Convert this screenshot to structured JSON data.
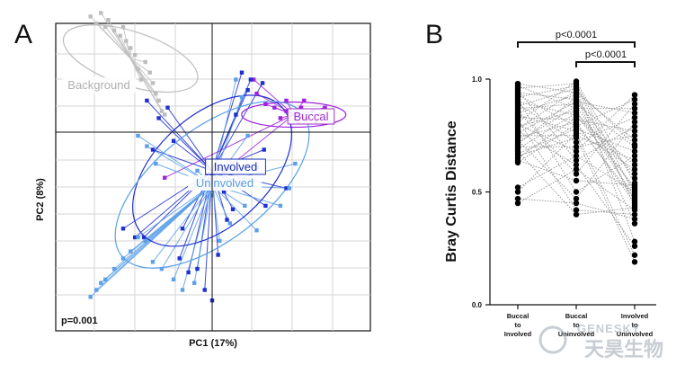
{
  "panel_a": {
    "letter": "A",
    "xlabel": "PC1 (17%)",
    "ylabel": "PC2 (8%)",
    "pvalue": "p=0.001",
    "groups": [
      {
        "name": "Background",
        "color": "#bdbdbd",
        "label_color": "#b0b0b0"
      },
      {
        "name": "Buccal",
        "color": "#a020e0",
        "label_color": "#9b30c8"
      },
      {
        "name": "Involved",
        "color": "#1f2fd0",
        "label_color": "#1a2fb8"
      },
      {
        "name": "Uninvolved",
        "color": "#5ba0e8",
        "label_color": "#5a9fe0"
      }
    ]
  },
  "panel_b": {
    "letter": "B",
    "brackets": [
      {
        "text": "p<0.0001"
      },
      {
        "text": "p<0.0001"
      }
    ]
  },
  "chart_data": [
    {
      "type": "scatter",
      "title": "",
      "xlabel": "PC1 (17%)",
      "ylabel": "PC2 (8%)",
      "annotation": "p=0.001",
      "grid": true,
      "series": [
        {
          "name": "Background",
          "centroid": [
            -0.55,
            0.42
          ],
          "points": [
            [
              -0.82,
              0.66
            ],
            [
              -0.78,
              0.62
            ],
            [
              -0.75,
              0.68
            ],
            [
              -0.72,
              0.6
            ],
            [
              -0.7,
              0.64
            ],
            [
              -0.66,
              0.58
            ],
            [
              -0.62,
              0.55
            ],
            [
              -0.6,
              0.6
            ],
            [
              -0.58,
              0.52
            ],
            [
              -0.55,
              0.48
            ],
            [
              -0.52,
              0.44
            ],
            [
              -0.5,
              0.36
            ],
            [
              -0.48,
              0.3
            ],
            [
              -0.45,
              0.4
            ],
            [
              -0.42,
              0.34
            ],
            [
              -0.4,
              0.28
            ],
            [
              -0.38,
              0.22
            ],
            [
              -0.36,
              0.18
            ],
            [
              -0.34,
              0.12
            ],
            [
              -0.32,
              0.1
            ]
          ]
        },
        {
          "name": "Buccal",
          "centroid": [
            0.55,
            0.1
          ],
          "points": [
            [
              0.28,
              0.3
            ],
            [
              0.3,
              0.22
            ],
            [
              0.36,
              0.16
            ],
            [
              0.42,
              0.14
            ],
            [
              0.46,
              0.08
            ],
            [
              0.5,
              0.12
            ],
            [
              0.55,
              0.1
            ],
            [
              0.6,
              0.14
            ],
            [
              0.64,
              0.08
            ],
            [
              0.68,
              0.12
            ],
            [
              0.72,
              0.1
            ],
            [
              0.76,
              0.14
            ],
            [
              0.5,
              0.18
            ],
            [
              0.58,
              0.06
            ],
            [
              0.62,
              0.18
            ],
            [
              0.7,
              0.06
            ],
            [
              0.08,
              -0.22
            ],
            [
              -0.32,
              -0.26
            ]
          ]
        },
        {
          "name": "Involved",
          "centroid": [
            0.0,
            -0.22
          ],
          "points": [
            [
              -0.44,
              0.18
            ],
            [
              -0.36,
              0.08
            ],
            [
              -0.3,
              0.14
            ],
            [
              -0.26,
              -0.05
            ],
            [
              -0.4,
              -0.1
            ],
            [
              -0.2,
              -0.55
            ],
            [
              -0.22,
              -0.72
            ],
            [
              -0.16,
              -0.8
            ],
            [
              -0.1,
              -0.78
            ],
            [
              -0.05,
              -0.9
            ],
            [
              0.0,
              -0.96
            ],
            [
              0.04,
              -0.7
            ],
            [
              0.1,
              -0.5
            ],
            [
              0.14,
              -0.44
            ],
            [
              0.2,
              -0.3
            ],
            [
              0.3,
              -0.2
            ],
            [
              0.35,
              -0.1
            ],
            [
              0.16,
              0.1
            ],
            [
              0.2,
              0.34
            ],
            [
              0.24,
              0.24
            ],
            [
              0.26,
              0.3
            ],
            [
              0.34,
              0.28
            ],
            [
              -0.52,
              -0.6
            ],
            [
              -0.6,
              -0.55
            ],
            [
              -0.46,
              -0.6
            ],
            [
              0.08,
              -0.34
            ],
            [
              0.12,
              -0.2
            ],
            [
              0.36,
              -0.42
            ],
            [
              0.5,
              -0.32
            ]
          ]
        },
        {
          "name": "Uninvolved",
          "centroid": [
            0.0,
            -0.3
          ],
          "points": [
            [
              -0.82,
              -0.94
            ],
            [
              -0.78,
              -0.9
            ],
            [
              -0.75,
              -0.86
            ],
            [
              -0.72,
              -0.84
            ],
            [
              -0.66,
              -0.78
            ],
            [
              -0.6,
              -0.72
            ],
            [
              -0.55,
              -0.68
            ],
            [
              -0.5,
              -0.6
            ],
            [
              -0.45,
              -0.62
            ],
            [
              -0.4,
              -0.74
            ],
            [
              -0.34,
              -0.78
            ],
            [
              -0.26,
              -0.84
            ],
            [
              -0.2,
              -0.9
            ],
            [
              -0.12,
              -0.86
            ],
            [
              0.05,
              -0.62
            ],
            [
              0.12,
              -0.52
            ],
            [
              0.22,
              -0.42
            ],
            [
              0.3,
              -0.56
            ],
            [
              0.46,
              -0.42
            ],
            [
              0.52,
              -0.32
            ],
            [
              0.56,
              -0.18
            ],
            [
              0.24,
              -0.02
            ],
            [
              0.2,
              0.2
            ],
            [
              0.16,
              0.3
            ],
            [
              -0.5,
              -0.02
            ],
            [
              -0.44,
              -0.08
            ],
            [
              -0.38,
              -0.18
            ],
            [
              -0.1,
              -0.22
            ],
            [
              0.0,
              -0.36
            ]
          ]
        }
      ]
    },
    {
      "type": "scatter",
      "title": "",
      "xlabel": "",
      "ylabel": "Bray Curtis Distance",
      "ylim": [
        0.0,
        1.0
      ],
      "yticks": [
        "0.0",
        "0.5",
        "1.0"
      ],
      "categories": [
        "Buccal\nto\nInvolved",
        "Buccal\nto\nUninvolved",
        "Involved\nto\nUninvolved"
      ],
      "paired_lines": true,
      "annotations": [
        "p<0.0001",
        "p<0.0001"
      ],
      "series": [
        {
          "name": "Buccal to Involved",
          "values": [
            0.98,
            0.97,
            0.96,
            0.95,
            0.94,
            0.93,
            0.92,
            0.91,
            0.9,
            0.89,
            0.88,
            0.87,
            0.86,
            0.85,
            0.84,
            0.83,
            0.82,
            0.81,
            0.8,
            0.79,
            0.78,
            0.77,
            0.76,
            0.75,
            0.74,
            0.73,
            0.72,
            0.71,
            0.7,
            0.69,
            0.68,
            0.67,
            0.66,
            0.65,
            0.64,
            0.63,
            0.52,
            0.5,
            0.47,
            0.45
          ]
        },
        {
          "name": "Buccal to Uninvolved",
          "values": [
            0.99,
            0.98,
            0.97,
            0.96,
            0.95,
            0.94,
            0.93,
            0.92,
            0.91,
            0.9,
            0.89,
            0.88,
            0.87,
            0.86,
            0.85,
            0.84,
            0.83,
            0.82,
            0.81,
            0.8,
            0.79,
            0.78,
            0.77,
            0.76,
            0.75,
            0.74,
            0.72,
            0.7,
            0.68,
            0.66,
            0.64,
            0.62,
            0.6,
            0.58,
            0.55,
            0.5,
            0.47,
            0.45,
            0.42,
            0.4
          ]
        },
        {
          "name": "Involved to Uninvolved",
          "values": [
            0.93,
            0.91,
            0.89,
            0.87,
            0.85,
            0.83,
            0.81,
            0.79,
            0.77,
            0.75,
            0.73,
            0.71,
            0.7,
            0.68,
            0.66,
            0.64,
            0.62,
            0.6,
            0.58,
            0.56,
            0.54,
            0.53,
            0.52,
            0.51,
            0.5,
            0.49,
            0.48,
            0.47,
            0.46,
            0.45,
            0.44,
            0.43,
            0.42,
            0.4,
            0.38,
            0.36,
            0.28,
            0.26,
            0.22,
            0.19
          ]
        }
      ]
    }
  ],
  "watermark": {
    "line1": "GENESKY",
    "line2": "天昊生物"
  }
}
